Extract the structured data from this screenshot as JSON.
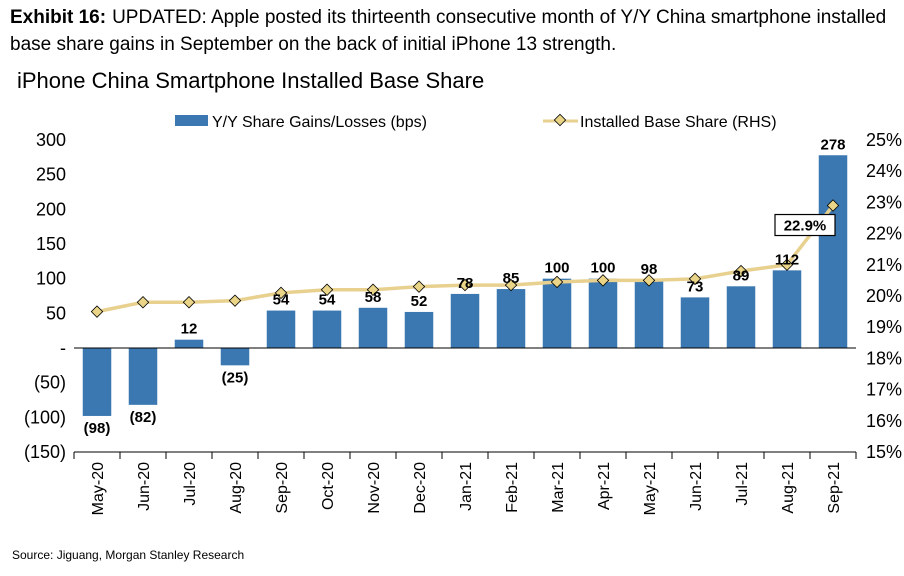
{
  "header": {
    "exhibit_label": "Exhibit 16:",
    "exhibit_text": "UPDATED: Apple posted its thirteenth consecutive month of Y/Y China smartphone installed base share gains in September on the back of initial iPhone 13 strength.",
    "chart_title": "iPhone China Smartphone Installed Base Share"
  },
  "footer": {
    "source": "Source: Jiguang, Morgan Stanley Research"
  },
  "chart_data": {
    "type": "bar",
    "title": "iPhone China Smartphone Installed Base Share",
    "categories": [
      "May-20",
      "Jun-20",
      "Jul-20",
      "Aug-20",
      "Sep-20",
      "Oct-20",
      "Nov-20",
      "Dec-20",
      "Jan-21",
      "Feb-21",
      "Mar-21",
      "Apr-21",
      "May-21",
      "Jun-21",
      "Jul-21",
      "Aug-21",
      "Sep-21"
    ],
    "series": [
      {
        "name": "Y/Y Share Gains/Losses (bps)",
        "type": "bar",
        "axis": "left",
        "color": "#3b78b1",
        "values": [
          -98,
          -82,
          12,
          -25,
          54,
          54,
          58,
          52,
          78,
          85,
          100,
          100,
          98,
          73,
          89,
          112,
          278
        ],
        "labels": [
          "(98)",
          "(82)",
          "12",
          "(25)",
          "54",
          "54",
          "58",
          "52",
          "78",
          "85",
          "100",
          "100",
          "98",
          "73",
          "89",
          "112",
          "278"
        ]
      },
      {
        "name": "Installed Base Share (RHS)",
        "type": "line",
        "axis": "right",
        "color": "#e8d08f",
        "marker_color": "#e9d487",
        "values": [
          19.5,
          19.8,
          19.8,
          19.85,
          20.1,
          20.2,
          20.2,
          20.3,
          20.35,
          20.35,
          20.45,
          20.5,
          20.5,
          20.55,
          20.8,
          21.0,
          22.9
        ],
        "highlight_label": "22.9%"
      }
    ],
    "y_left": {
      "range": [
        -150,
        300
      ],
      "ticks": [
        "300",
        "250",
        "200",
        "150",
        "100",
        "50",
        "-",
        "(50)",
        "(100)",
        "(150)"
      ],
      "tick_values": [
        300,
        250,
        200,
        150,
        100,
        50,
        0,
        -50,
        -100,
        -150
      ]
    },
    "y_right": {
      "range": [
        15,
        25
      ],
      "ticks": [
        "25%",
        "24%",
        "23%",
        "22%",
        "21%",
        "20%",
        "19%",
        "18%",
        "17%",
        "16%",
        "15%"
      ],
      "tick_values": [
        25,
        24,
        23,
        22,
        21,
        20,
        19,
        18,
        17,
        16,
        15
      ]
    },
    "grid": false,
    "legend": "top"
  }
}
